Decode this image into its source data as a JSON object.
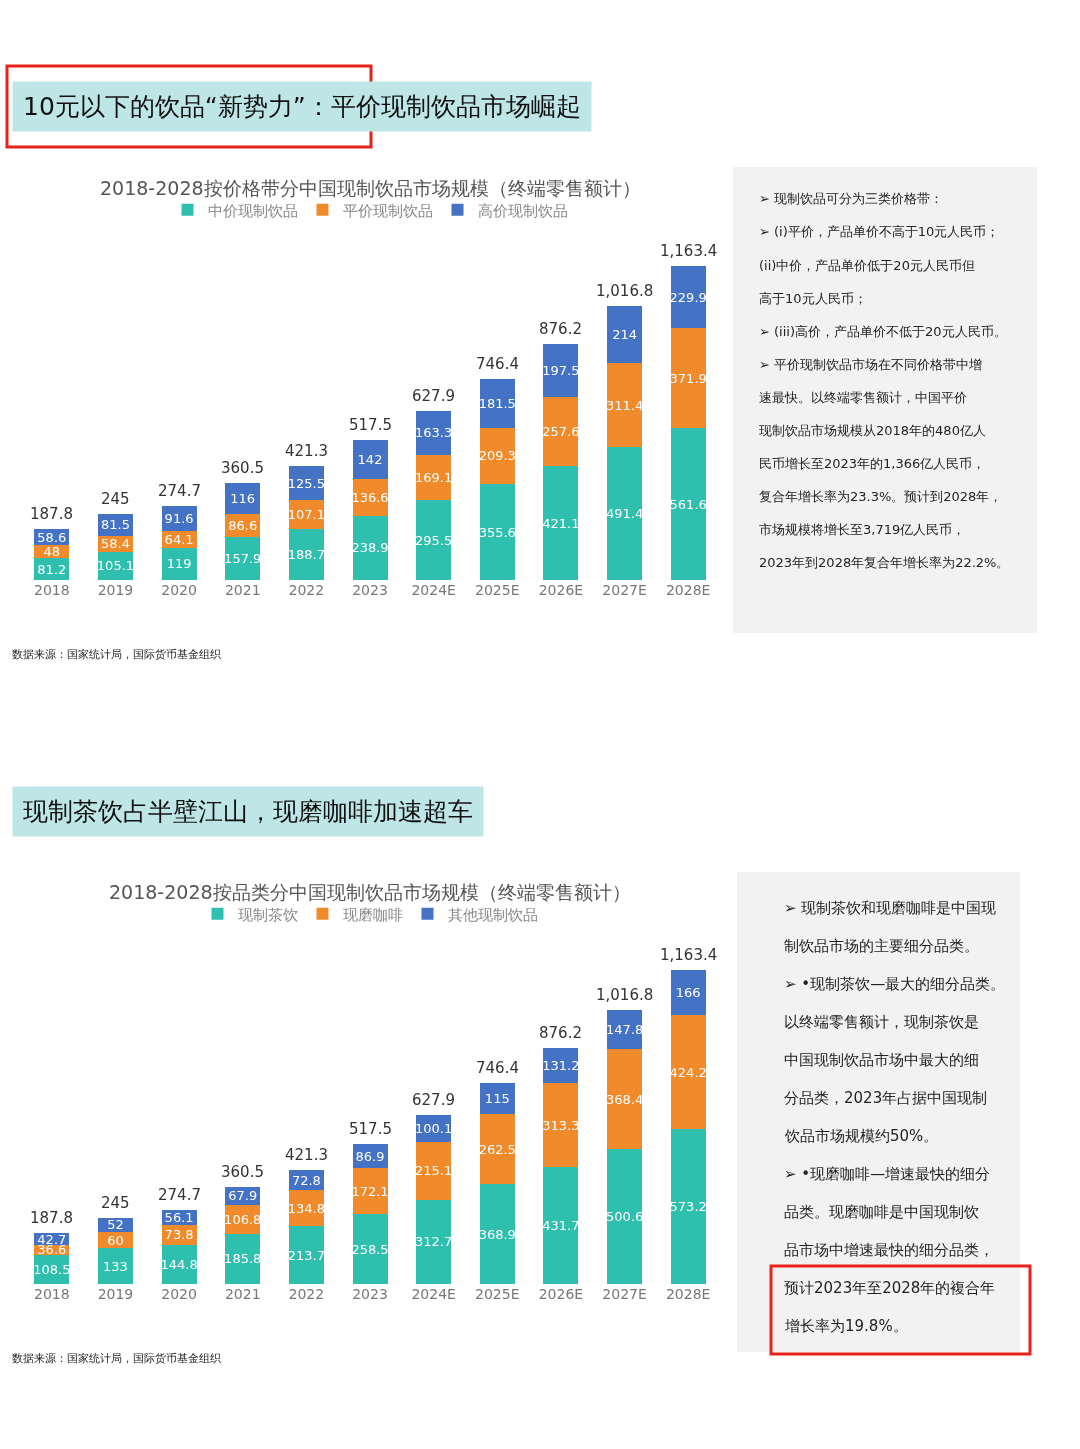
{
  "chart_data": [
    {
      "type": "bar",
      "stacked": true,
      "title": "2018-2028按价格带分中国现制饮品市场规模（终端零售额计）",
      "categories": [
        "2018",
        "2019",
        "2020",
        "2021",
        "2022",
        "2023",
        "2024E",
        "2025E",
        "2026E",
        "2027E",
        "2028E"
      ],
      "series": [
        {
          "name": "中价现制饮品",
          "color": "#2ebfae",
          "values": [
            81.2,
            105.1,
            119,
            157.9,
            188.7,
            238.9,
            295.5,
            355.6,
            421.1,
            491.4,
            561.6
          ]
        },
        {
          "name": "平价现制饮品",
          "color": "#f08a2a",
          "values": [
            48,
            58.4,
            64.1,
            86.6,
            107.1,
            136.6,
            169.1,
            209.3,
            257.6,
            311.4,
            371.9
          ]
        },
        {
          "name": "高价现制饮品",
          "color": "#4472c4",
          "values": [
            58.6,
            81.5,
            91.6,
            116,
            125.5,
            142,
            163.3,
            181.5,
            197.5,
            214,
            229.9
          ]
        }
      ],
      "totals": [
        "187.8",
        "245",
        "274.7",
        "360.5",
        "421.3",
        "517.5",
        "627.9",
        "746.4",
        "876.2",
        "1,016.8",
        "1,163.4"
      ],
      "data_labels": true,
      "legend": "top",
      "annotations": [
        "10元以下的饮品“新势力”：平价现制饮品市场崛起",
        "数据来源：国家统计局，国际货币基金组织"
      ]
    },
    {
      "type": "other",
      "annotations": [
        "➢ 现制饮品可分为三类价格带：",
        "➢ (i)平价，产品单价不高于10元人民币；",
        "(ii)中价，产品单价低于20元人民币但",
        "高于10元人民币；",
        "➢ (iii)高价，产品单价不低于20元人民币。",
        "➢ 平价现制饮品市场在不同价格带中增",
        "速最快。以终端零售额计，中国平价",
        "现制饮品市场规模从2018年的480亿人",
        "民币增长至2023年的1,366亿人民币，",
        "复合年增长率为23.3%。预计到2028年，",
        "市场规模将增长至3,719亿人民币，",
        "2023年到2028年复合年增长率为22.2%。"
      ]
    },
    {
      "type": "bar",
      "stacked": true,
      "title": "2018-2028按品类分中国现制饮品市场规模（终端零售额计）",
      "categories": [
        "2018",
        "2019",
        "2020",
        "2021",
        "2022",
        "2023",
        "2024E",
        "2025E",
        "2026E",
        "2027E",
        "2028E"
      ],
      "series": [
        {
          "name": "现制茶饮",
          "color": "#2ebfae",
          "values": [
            108.5,
            133,
            144.8,
            185.8,
            213.7,
            258.5,
            312.7,
            368.9,
            431.7,
            500.6,
            573.2
          ]
        },
        {
          "name": "现磨咖啡",
          "color": "#f08a2a",
          "values": [
            36.6,
            60,
            73.8,
            106.8,
            134.8,
            172.1,
            215.1,
            262.5,
            313.3,
            368.4,
            424.2
          ]
        },
        {
          "name": "其他现制饮品",
          "color": "#4472c4",
          "values": [
            42.7,
            52,
            56.1,
            67.9,
            72.8,
            86.9,
            100.1,
            115,
            131.2,
            147.8,
            166
          ]
        }
      ],
      "totals": [
        "187.8",
        "245",
        "274.7",
        "360.5",
        "421.3",
        "517.5",
        "627.9",
        "746.4",
        "876.2",
        "1,016.8",
        "1,163.4"
      ],
      "data_labels": true,
      "legend": "top",
      "annotations": [
        "现制茶饮占半壁江山，现磨咖啡加速超车",
        "数据来源：国家统计局，国际货币基金组织"
      ]
    },
    {
      "type": "other",
      "annotations": [
        "➢ 现制茶饮和现磨咖啡是中国现",
        "制饮品市场的主要细分品类。",
        "➢ •现制茶饮—最大的细分品类。",
        "以终端零售额计，现制茶饮是",
        "中国现制饮品市场中最大的细",
        "分品类，2023年占据中国现制",
        "饮品市场规模约50%。",
        "➢ •现磨咖啡—增速最快的细分",
        "品类。现磨咖啡是中国现制饮",
        "品市场中增速最快的细分品类，",
        "预计2023年至2028年的複合年",
        "增长率为19.8%。"
      ]
    }
  ]
}
